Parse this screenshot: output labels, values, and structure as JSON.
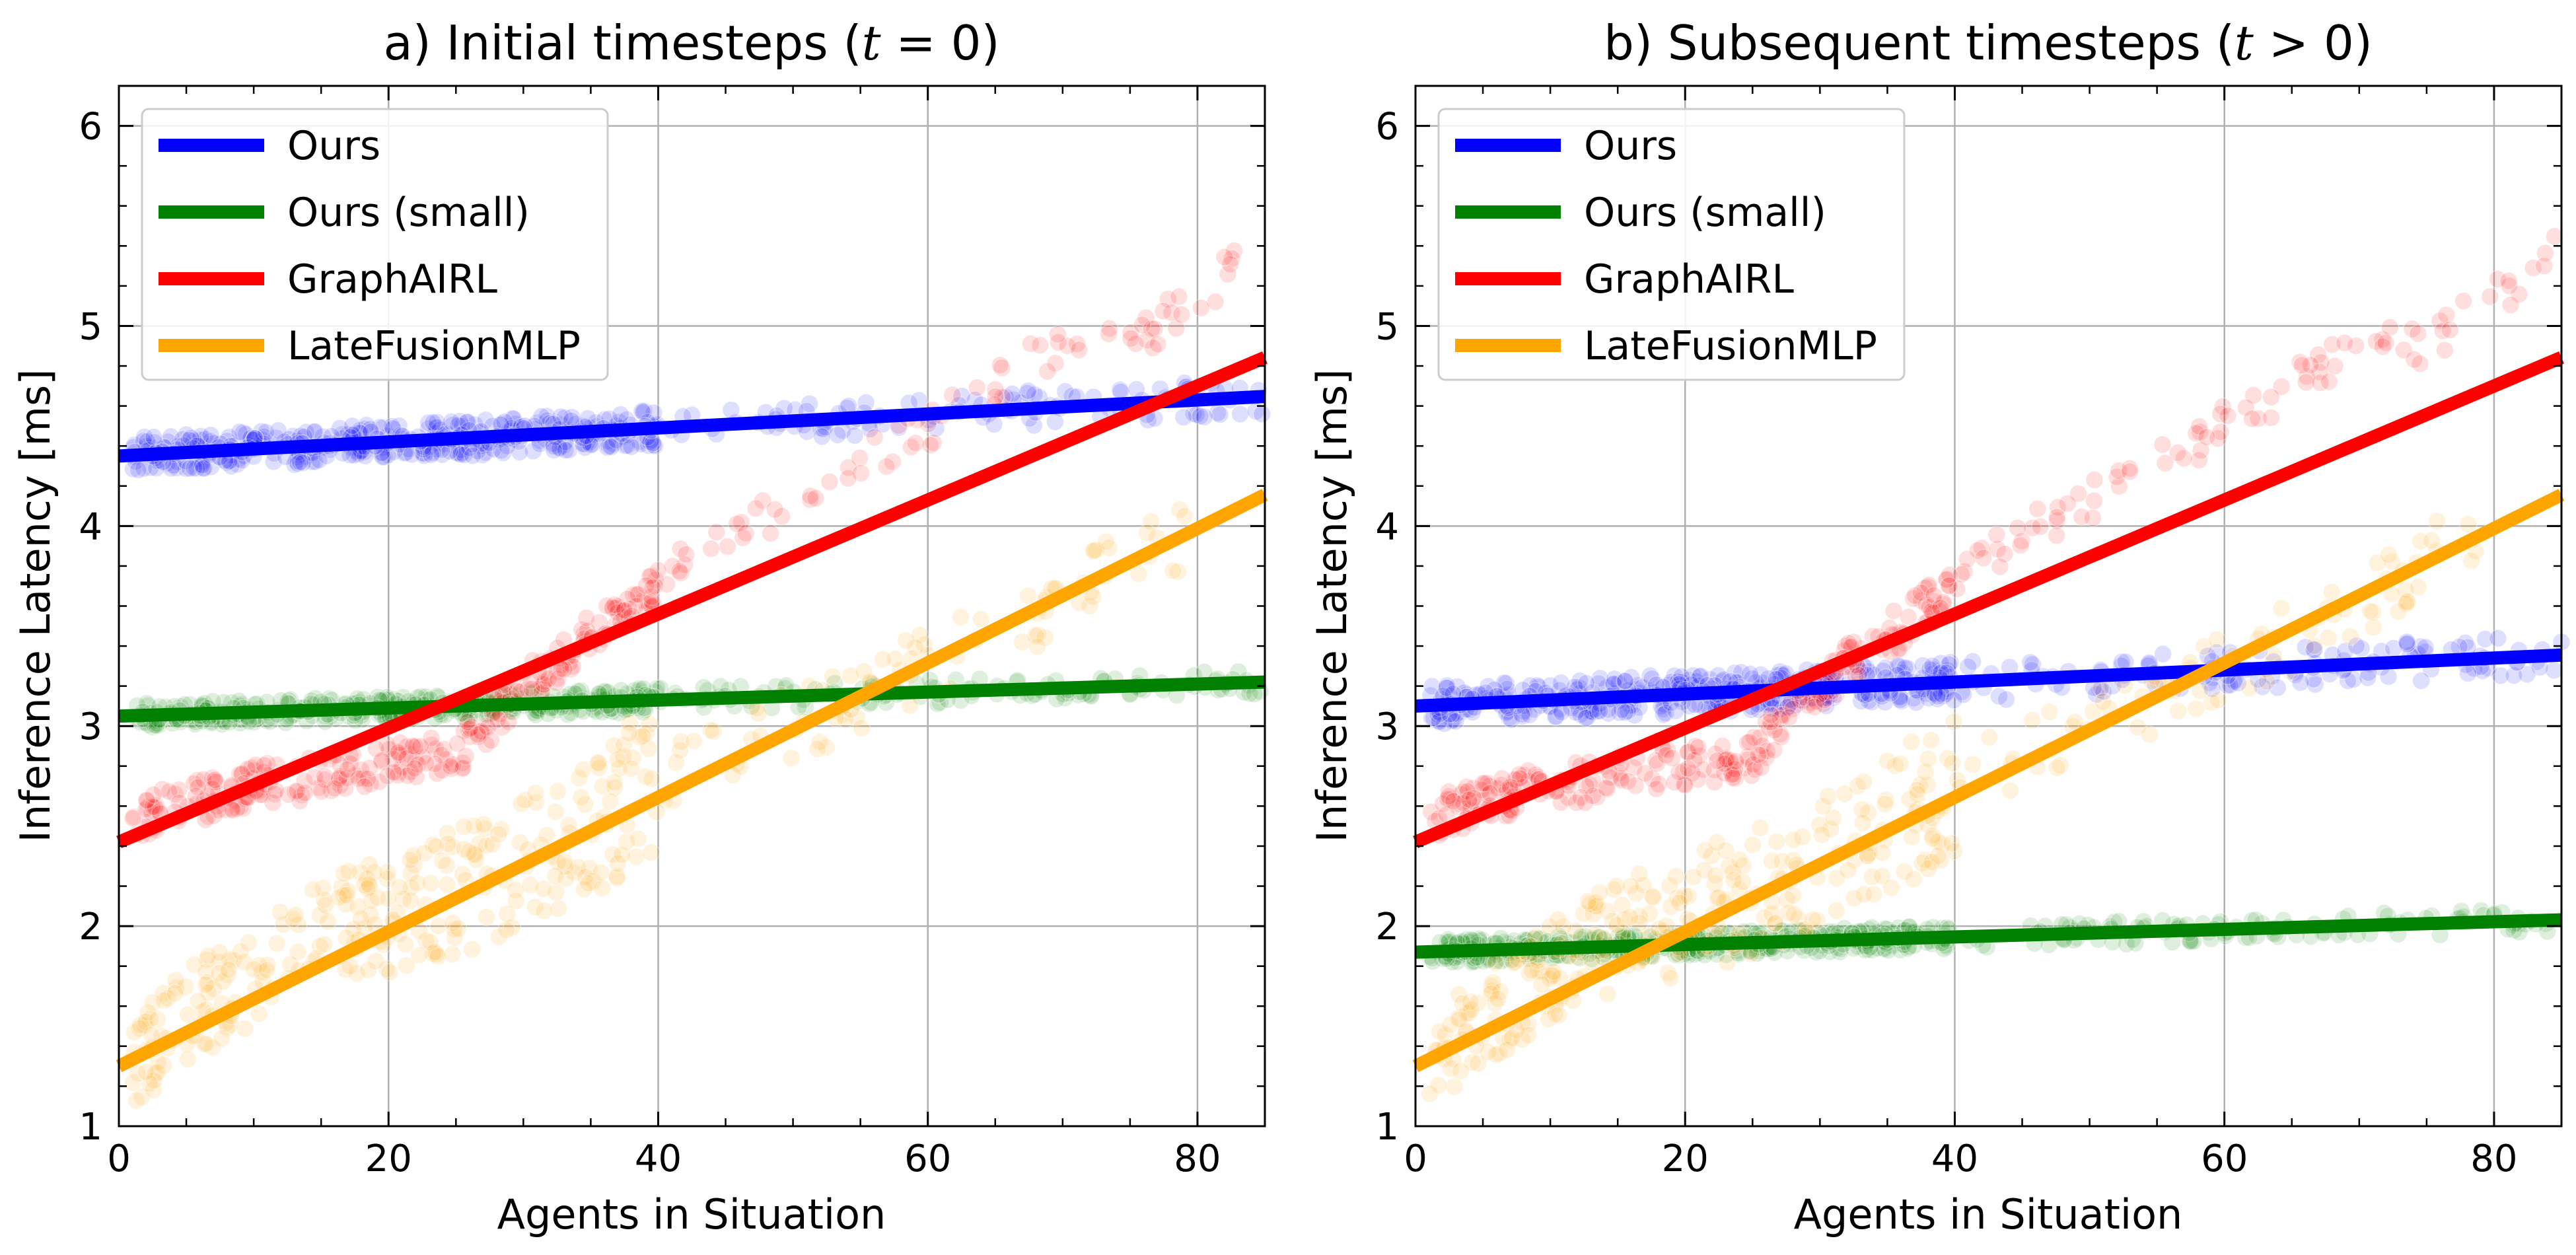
{
  "chart_data": [
    {
      "type": "scatter",
      "title": "a) Initial timesteps (t = 0)",
      "title_parts": {
        "prefix": "a) Initial timesteps (",
        "var": "t",
        "rel": " = 0",
        "suffix": ")"
      },
      "xlabel": "Agents in Situation",
      "ylabel": "Inference Latency [ms]",
      "xlim": [
        0,
        85
      ],
      "ylim": [
        1,
        6.2
      ],
      "xticks": [
        0,
        20,
        40,
        60,
        80
      ],
      "yticks": [
        1,
        2,
        3,
        4,
        5,
        6
      ],
      "grid": true,
      "legend_position": "top-left",
      "series": [
        {
          "name": "Ours",
          "color": "#0000ff",
          "fit": {
            "intercept": 4.35,
            "slope": 0.0035
          },
          "scatter": {
            "x_range": [
              1,
              85
            ],
            "spread": 0.09,
            "density": "dense-below-40"
          }
        },
        {
          "name": "Ours (small)",
          "color": "#008000",
          "fit": {
            "intercept": 3.05,
            "slope": 0.002
          },
          "scatter": {
            "x_range": [
              1,
              85
            ],
            "spread": 0.06,
            "density": "dense-below-40"
          }
        },
        {
          "name": "GraphAIRL",
          "color": "#ff0000",
          "fit": {
            "intercept": 2.42,
            "slope": 0.0285
          },
          "scatter": {
            "x_range": [
              1,
              85
            ],
            "points": [
              [
                1,
                2.55
              ],
              [
                10,
                2.7
              ],
              [
                20,
                2.8
              ],
              [
                25,
                2.85
              ],
              [
                30,
                3.2
              ],
              [
                35,
                3.45
              ],
              [
                40,
                3.7
              ],
              [
                45,
                3.95
              ],
              [
                55,
                4.3
              ],
              [
                60,
                4.5
              ],
              [
                65,
                4.7
              ],
              [
                70,
                4.92
              ],
              [
                75,
                4.92
              ],
              [
                80,
                5.15
              ],
              [
                85,
                5.4
              ]
            ]
          }
        },
        {
          "name": "LateFusionMLP",
          "color": "#ffa500",
          "fit": {
            "intercept": 1.3,
            "slope": 0.0336
          },
          "scatter": {
            "x_range": [
              1,
              80
            ],
            "points": [
              [
                1,
                1.3
              ],
              [
                5,
                1.55
              ],
              [
                10,
                1.75
              ],
              [
                15,
                1.95
              ],
              [
                20,
                2.05
              ],
              [
                30,
                2.3
              ],
              [
                35,
                2.5
              ],
              [
                40,
                2.75
              ],
              [
                50,
                3.0
              ],
              [
                60,
                3.3
              ],
              [
                70,
                3.6
              ],
              [
                75,
                3.85
              ],
              [
                80,
                3.95
              ]
            ]
          }
        }
      ]
    },
    {
      "type": "scatter",
      "title": "b) Subsequent timesteps (t > 0)",
      "title_parts": {
        "prefix": "b) Subsequent timesteps (",
        "var": "t",
        "rel": " > 0",
        "suffix": ")"
      },
      "xlabel": "Agents in Situation",
      "ylabel": "Inference Latency [ms]",
      "xlim": [
        0,
        85
      ],
      "ylim": [
        1,
        6.2
      ],
      "xticks": [
        0,
        20,
        40,
        60,
        80
      ],
      "yticks": [
        1,
        2,
        3,
        4,
        5,
        6
      ],
      "grid": true,
      "legend_position": "top-left",
      "series": [
        {
          "name": "Ours",
          "color": "#0000ff",
          "fit": {
            "intercept": 3.1,
            "slope": 0.003
          },
          "scatter": {
            "x_range": [
              1,
              85
            ],
            "spread": 0.1,
            "density": "dense-below-40"
          }
        },
        {
          "name": "Ours (small)",
          "color": "#008000",
          "fit": {
            "intercept": 1.87,
            "slope": 0.0019
          },
          "scatter": {
            "x_range": [
              1,
              85
            ],
            "spread": 0.06,
            "density": "dense-below-40"
          }
        },
        {
          "name": "GraphAIRL",
          "color": "#ff0000",
          "fit": {
            "intercept": 2.42,
            "slope": 0.0285
          },
          "scatter": {
            "x_range": [
              1,
              85
            ],
            "points": [
              [
                1,
                2.55
              ],
              [
                10,
                2.7
              ],
              [
                20,
                2.8
              ],
              [
                25,
                2.85
              ],
              [
                30,
                3.2
              ],
              [
                35,
                3.45
              ],
              [
                40,
                3.7
              ],
              [
                45,
                3.95
              ],
              [
                55,
                4.3
              ],
              [
                60,
                4.5
              ],
              [
                65,
                4.7
              ],
              [
                70,
                4.92
              ],
              [
                75,
                4.92
              ],
              [
                80,
                5.15
              ],
              [
                85,
                5.4
              ]
            ]
          }
        },
        {
          "name": "LateFusionMLP",
          "color": "#ffa500",
          "fit": {
            "intercept": 1.3,
            "slope": 0.0336
          },
          "scatter": {
            "x_range": [
              1,
              80
            ],
            "points": [
              [
                1,
                1.3
              ],
              [
                5,
                1.55
              ],
              [
                10,
                1.75
              ],
              [
                15,
                1.95
              ],
              [
                20,
                2.05
              ],
              [
                30,
                2.3
              ],
              [
                35,
                2.5
              ],
              [
                40,
                2.75
              ],
              [
                50,
                3.0
              ],
              [
                60,
                3.3
              ],
              [
                70,
                3.6
              ],
              [
                75,
                3.85
              ],
              [
                80,
                3.95
              ]
            ]
          }
        }
      ]
    }
  ]
}
